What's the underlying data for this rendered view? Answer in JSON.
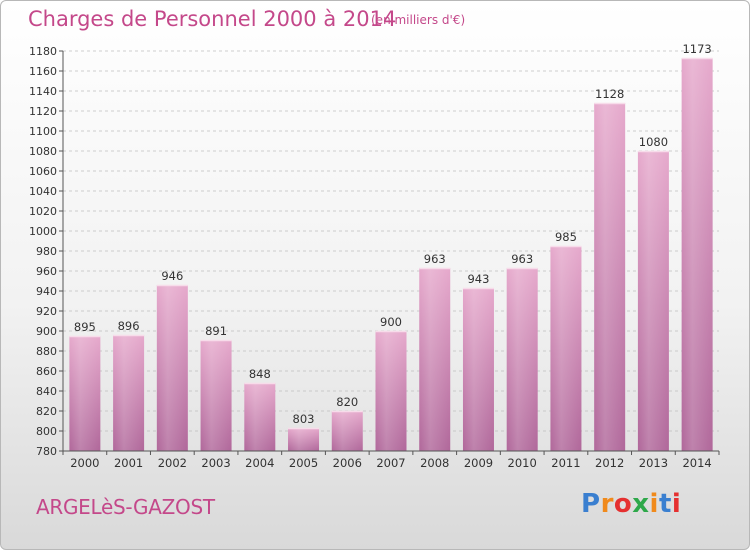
{
  "header": {
    "title": "Charges de Personnel 2000 à 2014",
    "subtitle": "(en milliers d'€)"
  },
  "footer": {
    "place": "ARGELèS-GAZOST",
    "brand": "Proxiti",
    "brand_colors": [
      "#3a7fd0",
      "#f08a1c",
      "#e53030",
      "#2ea84a",
      "#f08a1c",
      "#3a7fd0",
      "#e53030"
    ]
  },
  "colors": {
    "bar_top": "#e6a9cc",
    "bar_bottom": "#b0679a",
    "grid": "#bfbfbf",
    "axis": "#555555",
    "accent": "#c4488a"
  },
  "chart_data": {
    "type": "bar",
    "categories": [
      "2000",
      "2001",
      "2002",
      "2003",
      "2004",
      "2005",
      "2006",
      "2007",
      "2008",
      "2009",
      "2010",
      "2011",
      "2012",
      "2013",
      "2014"
    ],
    "values": [
      895,
      896,
      946,
      891,
      848,
      803,
      820,
      900,
      963,
      943,
      963,
      985,
      1128,
      1080,
      1173
    ],
    "ylim": [
      780,
      1180
    ],
    "yticks": [
      780,
      800,
      820,
      840,
      860,
      880,
      900,
      920,
      940,
      960,
      980,
      1000,
      1020,
      1040,
      1060,
      1080,
      1100,
      1120,
      1140,
      1160,
      1180
    ],
    "grid": true,
    "xlabel": "",
    "ylabel": ""
  }
}
